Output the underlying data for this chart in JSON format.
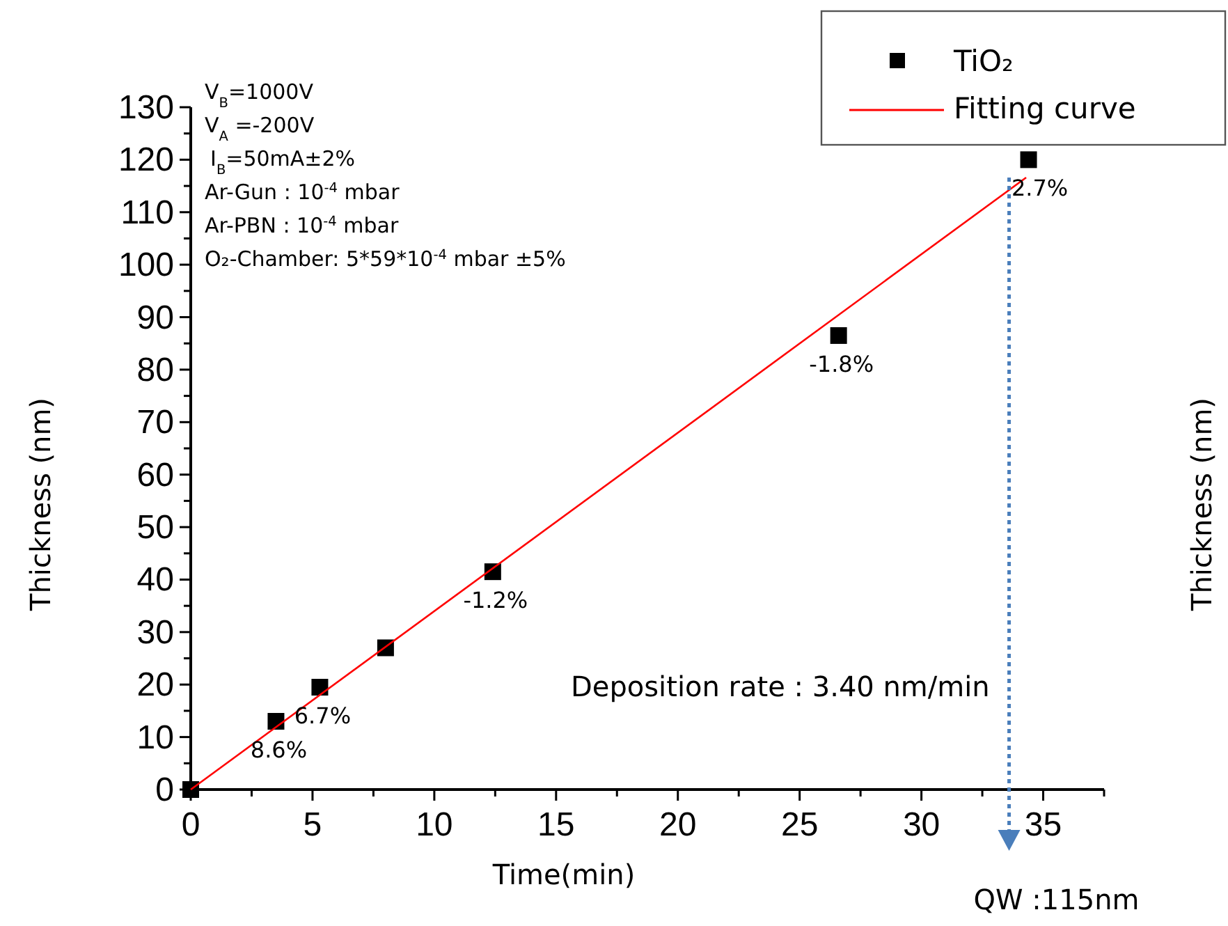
{
  "chart_data": {
    "type": "scatter",
    "xlabel": "Time(min)",
    "ylabel": "Thickness (nm)",
    "y2label": "Thickness (nm)",
    "xlim": [
      0,
      37.5
    ],
    "ylim": [
      0,
      130
    ],
    "xticks": [
      0,
      {
        "value": 2.5,
        "label": null
      },
      5,
      {
        "value": 7.5,
        "label": null
      },
      10,
      {
        "value": 12.5,
        "label": null
      },
      15,
      {
        "value": 17.5,
        "label": null
      },
      20,
      {
        "value": 22.5,
        "label": null
      },
      25,
      {
        "value": 27.5,
        "label": null
      },
      30,
      {
        "value": 32.5,
        "label": null
      },
      35,
      {
        "value": 37.5,
        "label": null
      }
    ],
    "yticks": [
      0,
      {
        "value": 5,
        "label": null
      },
      10,
      {
        "value": 15,
        "label": null
      },
      20,
      {
        "value": 25,
        "label": null
      },
      30,
      {
        "value": 35,
        "label": null
      },
      40,
      {
        "value": 45,
        "label": null
      },
      50,
      {
        "value": 55,
        "label": null
      },
      60,
      {
        "value": 65,
        "label": null
      },
      70,
      {
        "value": 75,
        "label": null
      },
      80,
      {
        "value": 85,
        "label": null
      },
      90,
      {
        "value": 95,
        "label": null
      },
      100,
      {
        "value": 105,
        "label": null
      },
      110,
      {
        "value": 115,
        "label": null
      },
      120,
      {
        "value": 125,
        "label": null
      },
      130
    ],
    "series": [
      {
        "name": "TiO₂",
        "color": "#000000",
        "marker": "square",
        "x": [
          0,
          3.5,
          5.3,
          8.0,
          12.4,
          26.6,
          34.4
        ],
        "values": [
          0,
          13,
          19.5,
          27,
          41.5,
          86.5,
          120
        ]
      },
      {
        "name": "Fitting curve",
        "type": "line",
        "color": "#ff0000",
        "marker": "none",
        "line_style": "solid",
        "x": [
          0,
          34.3
        ],
        "values": [
          0,
          116.6
        ]
      }
    ],
    "ref_lines": [
      {
        "axis": "x",
        "value": 33.6,
        "color": "#4a7ebb",
        "line_style": "dotted"
      }
    ],
    "annotations": [
      {
        "text": "8.6%",
        "x": 3.5,
        "y": 13
      },
      {
        "text": "6.7%",
        "x": 5.3,
        "y": 19.5
      },
      {
        "text": "-1.2%",
        "x": 12.4,
        "y": 41.5
      },
      {
        "text": "-1.8%",
        "x": 26.6,
        "y": 86.5
      },
      {
        "text": "2.7%",
        "x": 34.4,
        "y": 120
      },
      "V$_{B}$=1000V",
      "V$_{A}$ =-200V",
      "I$_{B}$=50mA±2%",
      "Ar-Gun : 10$^{-4}$ mbar",
      "Ar-PBN : 10$^{-4}$ mbar",
      "O₂-Chamber: 5*59*10$^{-4}$ mbar ±5%",
      "Deposition rate : 3.40 nm/min",
      "QW :115nm"
    ],
    "legend": "top right",
    "grid": false
  }
}
